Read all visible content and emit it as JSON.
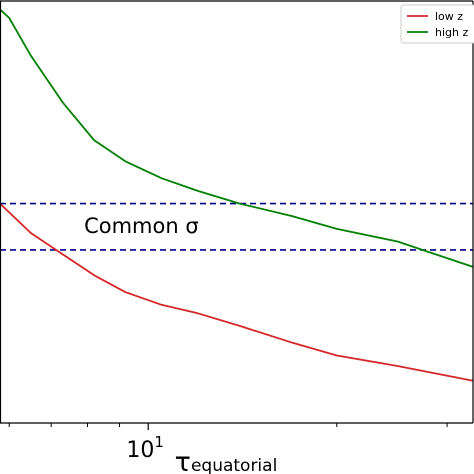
{
  "chart_data": {
    "type": "line",
    "xscale": "log",
    "xlabel": {
      "symbol": "τ",
      "subscript": "equatorial"
    },
    "ylabel": "",
    "xlim": [
      5.8,
      33
    ],
    "ylim": [
      0.0,
      1.0
    ],
    "xticks": [
      {
        "value": 10,
        "base": "10",
        "exponent": "1"
      }
    ],
    "minor_xticks": [
      6,
      7,
      8,
      9,
      20,
      30
    ],
    "grid": false,
    "legend": {
      "placement": "top-right"
    },
    "series": [
      {
        "name": "low z",
        "color": "#d62728",
        "x": [
          5.8,
          6.5,
          7.3,
          8.2,
          9.2,
          10.5,
          12.0,
          14.0,
          17.0,
          20.0,
          25.0,
          33.0
        ],
        "y": [
          0.52,
          0.45,
          0.4,
          0.35,
          0.31,
          0.28,
          0.26,
          0.23,
          0.19,
          0.16,
          0.135,
          0.1
        ]
      },
      {
        "name": "high z",
        "color": "#008000",
        "x": [
          5.8,
          6.0,
          6.5,
          7.3,
          8.2,
          9.2,
          10.5,
          12.0,
          14.0,
          17.0,
          20.0,
          25.0,
          33.0
        ],
        "y": [
          0.98,
          0.96,
          0.87,
          0.76,
          0.67,
          0.62,
          0.58,
          0.55,
          0.52,
          0.49,
          0.46,
          0.43,
          0.37
        ]
      }
    ],
    "hlines": [
      {
        "y": 0.52,
        "color": "#00008b",
        "style": "dashed"
      },
      {
        "y": 0.41,
        "color": "#00008b",
        "style": "dashed"
      }
    ],
    "annotations": [
      {
        "text": "Common σ",
        "x": 7.9,
        "y": 0.465
      }
    ]
  }
}
